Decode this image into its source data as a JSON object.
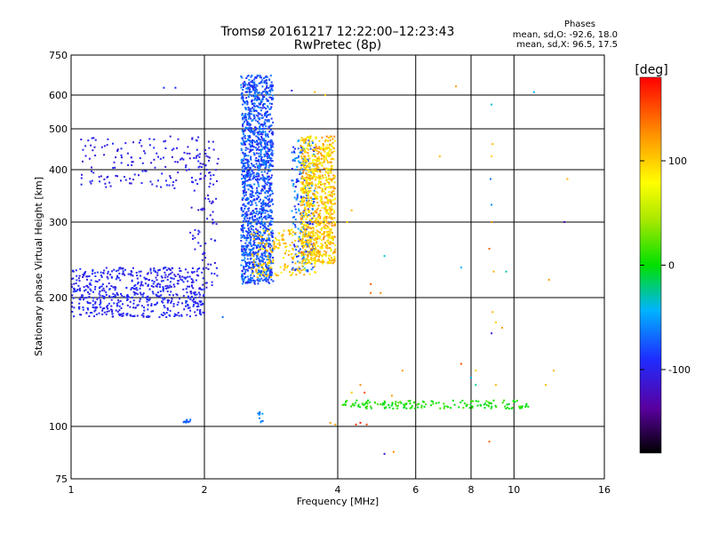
{
  "title_line1": "Tromsø 20161217 12:22:00–12:23:43",
  "title_line2": "RwPretec (8p)",
  "phases": {
    "heading": "Phases",
    "line1": "mean, sd,O:  -92.6, 18.0",
    "line2": "mean, sd,X:  96.5, 17.5"
  },
  "colorbar": {
    "label": "[deg]",
    "ticks": [
      "100",
      "0",
      "-100"
    ],
    "tick_values": [
      100,
      0,
      -100
    ],
    "range": [
      -180,
      180
    ]
  },
  "chart_data": {
    "type": "scatter",
    "xlabel": "Frequency [MHz]",
    "ylabel": "Stationary phase Virtual Height [km]",
    "xscale": "log",
    "yscale": "nonlinear",
    "xlim": [
      1,
      16
    ],
    "ylim": [
      75,
      750
    ],
    "x_ticks": [
      1,
      2,
      4,
      6,
      8,
      10,
      16
    ],
    "x_tick_labels": [
      "1",
      "2",
      "4",
      "6",
      "8",
      "10",
      "16"
    ],
    "y_ticks": [
      75,
      100,
      200,
      300,
      400,
      500,
      600,
      750
    ],
    "y_tick_labels": [
      "75",
      "100",
      "200",
      "300",
      "400",
      "500",
      "600",
      "750"
    ],
    "grid": true,
    "point_clusters": [
      {
        "desc": "O-trace lower branch",
        "x": [
          1.0,
          2.0
        ],
        "y": [
          180,
          235
        ],
        "phase": [
          -115,
          -95
        ],
        "n": 600
      },
      {
        "desc": "O-trace upper branch",
        "x": [
          1.05,
          2.1
        ],
        "y": [
          360,
          480
        ],
        "phase": [
          -120,
          -100
        ],
        "n": 160
      },
      {
        "desc": "O-trace steep rise",
        "x": [
          1.85,
          2.15
        ],
        "y": [
          210,
          470
        ],
        "phase": [
          -120,
          -100
        ],
        "n": 90
      },
      {
        "desc": "O-trace dense column",
        "x": [
          2.42,
          2.86
        ],
        "y": [
          215,
          670
        ],
        "phase": [
          -110,
          -70
        ],
        "n": 1500
      },
      {
        "desc": "Mixed column",
        "x": [
          3.15,
          3.55
        ],
        "y": [
          230,
          470
        ],
        "phase": [
          -110,
          -60
        ],
        "n": 240
      },
      {
        "desc": "X-trace main column",
        "x": [
          3.3,
          3.95
        ],
        "y": [
          240,
          480
        ],
        "phase": [
          70,
          130
        ],
        "n": 900
      },
      {
        "desc": "X-trace lower curve",
        "x": [
          2.55,
          3.6
        ],
        "y": [
          222,
          290
        ],
        "phase": [
          80,
          120
        ],
        "n": 220
      },
      {
        "desc": "Sporadic E layer",
        "x": [
          4.1,
          10.8
        ],
        "y": [
          110,
          115
        ],
        "phase": [
          -10,
          20
        ],
        "n": 160
      },
      {
        "desc": "Low echoes near 1.8 MHz",
        "x": [
          1.78,
          1.88
        ],
        "y": [
          102,
          104
        ],
        "phase": [
          -90,
          -70
        ],
        "n": 12
      },
      {
        "desc": "Low echoes near 2.7 MHz",
        "x": [
          2.64,
          2.72
        ],
        "y": [
          101,
          108
        ],
        "phase": [
          -80,
          -60
        ],
        "n": 10
      }
    ],
    "isolated_points": [
      {
        "x": 1.62,
        "y": 625,
        "phase": -100
      },
      {
        "x": 1.72,
        "y": 625,
        "phase": -100
      },
      {
        "x": 3.15,
        "y": 615,
        "phase": -110
      },
      {
        "x": 3.55,
        "y": 610,
        "phase": 110
      },
      {
        "x": 3.75,
        "y": 600,
        "phase": 100
      },
      {
        "x": 7.4,
        "y": 630,
        "phase": 120
      },
      {
        "x": 11.1,
        "y": 610,
        "phase": -60
      },
      {
        "x": 8.9,
        "y": 570,
        "phase": -50
      },
      {
        "x": 8.95,
        "y": 460,
        "phase": 110
      },
      {
        "x": 8.9,
        "y": 430,
        "phase": 100
      },
      {
        "x": 6.8,
        "y": 430,
        "phase": 110
      },
      {
        "x": 8.85,
        "y": 380,
        "phase": -80
      },
      {
        "x": 8.9,
        "y": 330,
        "phase": -70
      },
      {
        "x": 8.9,
        "y": 300,
        "phase": 120
      },
      {
        "x": 13.2,
        "y": 380,
        "phase": 110
      },
      {
        "x": 13.0,
        "y": 300,
        "phase": -130
      },
      {
        "x": 4.3,
        "y": 320,
        "phase": 110
      },
      {
        "x": 4.2,
        "y": 300,
        "phase": 100
      },
      {
        "x": 8.8,
        "y": 260,
        "phase": 140
      },
      {
        "x": 5.1,
        "y": 250,
        "phase": -50
      },
      {
        "x": 7.6,
        "y": 235,
        "phase": -60
      },
      {
        "x": 9.6,
        "y": 230,
        "phase": -40
      },
      {
        "x": 9.0,
        "y": 230,
        "phase": 110
      },
      {
        "x": 12.0,
        "y": 220,
        "phase": 120
      },
      {
        "x": 4.75,
        "y": 215,
        "phase": 150
      },
      {
        "x": 4.75,
        "y": 205,
        "phase": 140
      },
      {
        "x": 5.0,
        "y": 205,
        "phase": 130
      },
      {
        "x": 2.2,
        "y": 180,
        "phase": -80
      },
      {
        "x": 8.95,
        "y": 185,
        "phase": 110
      },
      {
        "x": 9.1,
        "y": 175,
        "phase": 100
      },
      {
        "x": 9.4,
        "y": 170,
        "phase": 120
      },
      {
        "x": 8.9,
        "y": 165,
        "phase": -110
      },
      {
        "x": 7.6,
        "y": 140,
        "phase": 150
      },
      {
        "x": 8.2,
        "y": 135,
        "phase": 100
      },
      {
        "x": 5.6,
        "y": 135,
        "phase": 120
      },
      {
        "x": 12.3,
        "y": 135,
        "phase": 110
      },
      {
        "x": 8.0,
        "y": 130,
        "phase": -60
      },
      {
        "x": 9.1,
        "y": 125,
        "phase": 110
      },
      {
        "x": 8.2,
        "y": 125,
        "phase": -30
      },
      {
        "x": 11.8,
        "y": 125,
        "phase": 110
      },
      {
        "x": 4.5,
        "y": 125,
        "phase": 130
      },
      {
        "x": 4.6,
        "y": 120,
        "phase": 150
      },
      {
        "x": 4.3,
        "y": 120,
        "phase": 100
      },
      {
        "x": 5.3,
        "y": 118,
        "phase": 120
      },
      {
        "x": 4.4,
        "y": 101,
        "phase": 160
      },
      {
        "x": 4.5,
        "y": 102,
        "phase": 170
      },
      {
        "x": 4.65,
        "y": 101,
        "phase": 150
      },
      {
        "x": 3.95,
        "y": 101,
        "phase": 120
      },
      {
        "x": 3.85,
        "y": 102,
        "phase": 120
      },
      {
        "x": 8.8,
        "y": 92,
        "phase": 140
      },
      {
        "x": 5.1,
        "y": 86,
        "phase": -120
      },
      {
        "x": 5.35,
        "y": 87,
        "phase": 130
      }
    ]
  }
}
